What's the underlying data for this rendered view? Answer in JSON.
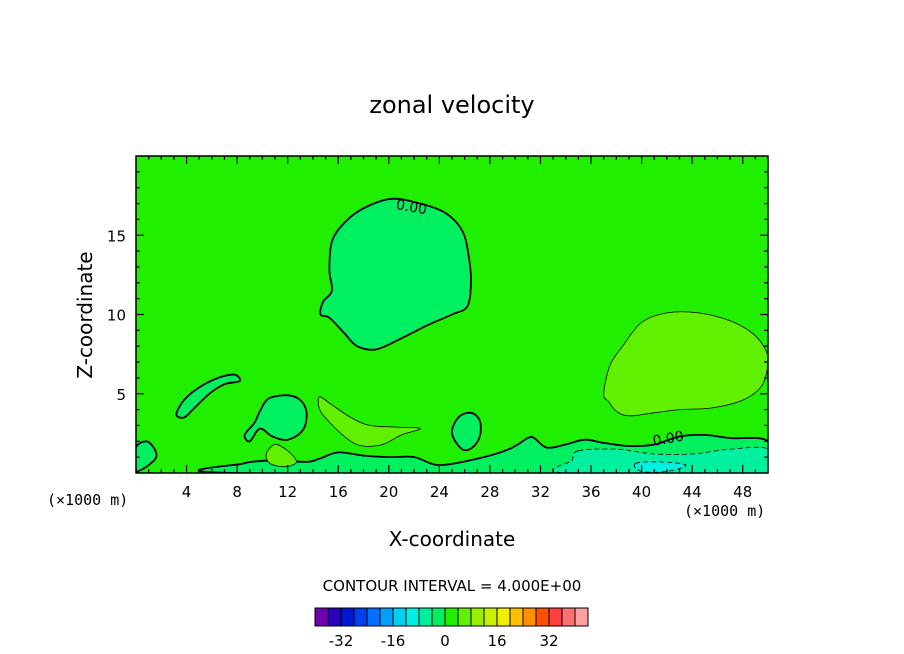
{
  "chart_data": {
    "type": "heatmap",
    "title": "zonal velocity",
    "xlabel": "X-coordinate",
    "ylabel": "Z-coordinate",
    "x_unit_left": "(×1000 m)",
    "x_unit_right": "(×1000 m)",
    "xlim": [
      0,
      50
    ],
    "ylim": [
      0,
      20
    ],
    "x_ticks": [
      4,
      8,
      12,
      16,
      20,
      24,
      28,
      32,
      36,
      40,
      44,
      48
    ],
    "y_ticks": [
      5,
      10,
      15
    ],
    "background_value": 2,
    "regions": [
      {
        "name": "upper-blob",
        "value": -2,
        "points": [
          [
            20.2,
            17.3
          ],
          [
            22.5,
            17.0
          ],
          [
            24.5,
            16.4
          ],
          [
            25.8,
            15.3
          ],
          [
            26.3,
            13.8
          ],
          [
            26.5,
            12.0
          ],
          [
            26.2,
            10.5
          ],
          [
            25.0,
            10.0
          ],
          [
            23.0,
            9.3
          ],
          [
            21.0,
            8.5
          ],
          [
            19.0,
            7.8
          ],
          [
            17.5,
            8.0
          ],
          [
            16.5,
            8.8
          ],
          [
            15.3,
            9.8
          ],
          [
            14.6,
            10.0
          ],
          [
            14.8,
            10.8
          ],
          [
            15.5,
            11.5
          ],
          [
            15.3,
            12.8
          ],
          [
            15.5,
            14.6
          ],
          [
            16.5,
            15.8
          ],
          [
            18.0,
            16.7
          ]
        ],
        "label": "0.00",
        "label_at": [
          21.8,
          16.8
        ],
        "label_angle": 10
      },
      {
        "name": "low-left-blob",
        "value": -2,
        "points": [
          [
            3.2,
            3.7
          ],
          [
            3.8,
            4.6
          ],
          [
            5.0,
            5.4
          ],
          [
            6.5,
            6.0
          ],
          [
            7.8,
            6.2
          ],
          [
            8.2,
            5.8
          ],
          [
            7.0,
            5.6
          ],
          [
            5.8,
            5.0
          ],
          [
            4.5,
            4.0
          ],
          [
            3.8,
            3.5
          ]
        ]
      },
      {
        "name": "blob-12",
        "value": -2,
        "points": [
          [
            9.8,
            3.9
          ],
          [
            10.5,
            4.7
          ],
          [
            12.0,
            4.9
          ],
          [
            13.0,
            4.6
          ],
          [
            13.5,
            3.8
          ],
          [
            13.2,
            2.7
          ],
          [
            12.0,
            2.1
          ],
          [
            10.8,
            2.3
          ],
          [
            9.8,
            2.8
          ],
          [
            9.0,
            2.0
          ],
          [
            8.6,
            2.4
          ],
          [
            9.4,
            3.2
          ]
        ]
      },
      {
        "name": "blob-26",
        "value": -2,
        "points": [
          [
            25.0,
            2.5
          ],
          [
            25.5,
            3.5
          ],
          [
            26.5,
            3.8
          ],
          [
            27.2,
            3.3
          ],
          [
            27.2,
            2.3
          ],
          [
            26.6,
            1.6
          ],
          [
            25.8,
            1.5
          ]
        ]
      },
      {
        "name": "blob-left-edge",
        "value": -2,
        "points": [
          [
            0.0,
            1.6
          ],
          [
            0.8,
            2.0
          ],
          [
            1.4,
            1.6
          ],
          [
            1.6,
            1.0
          ],
          [
            1.0,
            0.5
          ],
          [
            0.4,
            0.2
          ],
          [
            0.0,
            0.2
          ]
        ]
      },
      {
        "name": "low-band",
        "value": -2,
        "points": [
          [
            8.0,
            0.0
          ],
          [
            8.5,
            0.6
          ],
          [
            11.0,
            0.8
          ],
          [
            13.5,
            0.7
          ],
          [
            14.5,
            0.9
          ],
          [
            16.0,
            1.3
          ],
          [
            18.0,
            1.1
          ],
          [
            20.0,
            1.0
          ],
          [
            22.0,
            1.0
          ],
          [
            24.0,
            0.5
          ],
          [
            27.0,
            0.9
          ],
          [
            29.5,
            1.5
          ],
          [
            31.0,
            2.2
          ],
          [
            31.5,
            2.2
          ],
          [
            32.5,
            1.6
          ],
          [
            34.0,
            1.8
          ],
          [
            35.5,
            2.1
          ],
          [
            37.0,
            1.9
          ],
          [
            39.0,
            1.7
          ],
          [
            41.0,
            1.8
          ],
          [
            43.0,
            2.3
          ],
          [
            45.0,
            2.4
          ],
          [
            47.0,
            2.2
          ],
          [
            50.0,
            2.0
          ],
          [
            50.0,
            0.0
          ]
        ],
        "label": "0.00",
        "label_at": [
          42.1,
          2.2
        ],
        "label_angle": -10
      },
      {
        "name": "pos-blob-right",
        "value": 6,
        "points": [
          [
            37.0,
            5.0
          ],
          [
            37.5,
            6.8
          ],
          [
            38.5,
            8.0
          ],
          [
            40.0,
            9.5
          ],
          [
            42.0,
            10.1
          ],
          [
            44.5,
            10.1
          ],
          [
            47.0,
            9.6
          ],
          [
            48.8,
            8.8
          ],
          [
            49.8,
            7.8
          ],
          [
            50.0,
            6.9
          ],
          [
            49.5,
            5.5
          ],
          [
            48.0,
            4.6
          ],
          [
            45.5,
            4.1
          ],
          [
            43.0,
            4.0
          ],
          [
            41.0,
            3.8
          ],
          [
            39.0,
            3.6
          ],
          [
            38.0,
            3.9
          ],
          [
            37.4,
            4.5
          ]
        ]
      },
      {
        "name": "pos-blob-center",
        "value": 6,
        "points": [
          [
            14.5,
            4.8
          ],
          [
            15.5,
            4.3
          ],
          [
            17.0,
            3.5
          ],
          [
            18.5,
            3.0
          ],
          [
            20.5,
            2.9
          ],
          [
            22.5,
            2.8
          ],
          [
            21.0,
            2.4
          ],
          [
            19.5,
            1.8
          ],
          [
            18.0,
            1.7
          ],
          [
            17.0,
            2.0
          ],
          [
            15.8,
            2.8
          ],
          [
            14.6,
            3.9
          ]
        ]
      },
      {
        "name": "pos-blob-low-12",
        "value": 6,
        "points": [
          [
            10.3,
            1.2
          ],
          [
            11.0,
            1.8
          ],
          [
            12.0,
            1.4
          ],
          [
            12.7,
            0.7
          ],
          [
            11.8,
            0.4
          ],
          [
            10.6,
            0.6
          ]
        ]
      },
      {
        "name": "neg-low-right",
        "value": -6,
        "points": [
          [
            35.0,
            1.4
          ],
          [
            38.0,
            1.5
          ],
          [
            41.0,
            1.2
          ],
          [
            44.0,
            1.2
          ],
          [
            47.0,
            1.5
          ],
          [
            50.0,
            1.5
          ],
          [
            50.0,
            0.0
          ],
          [
            34.0,
            0.0
          ],
          [
            34.5,
            0.8
          ]
        ]
      },
      {
        "name": "neg-core-right",
        "value": -10,
        "points": [
          [
            39.5,
            0.6
          ],
          [
            41.5,
            0.7
          ],
          [
            43.5,
            0.5
          ],
          [
            42.0,
            0.1
          ],
          [
            40.0,
            0.1
          ]
        ]
      }
    ],
    "colorbar": {
      "title": "CONTOUR INTERVAL = 4.000E+00",
      "interval": 4,
      "bins": [
        {
          "range": [
            -40,
            -36
          ],
          "color": "#7000b0"
        },
        {
          "range": [
            -36,
            -32
          ],
          "color": "#2a00c0"
        },
        {
          "range": [
            -32,
            -28
          ],
          "color": "#0018d0"
        },
        {
          "range": [
            -28,
            -24
          ],
          "color": "#0040f0"
        },
        {
          "range": [
            -24,
            -20
          ],
          "color": "#0070ff"
        },
        {
          "range": [
            -20,
            -16
          ],
          "color": "#00a0ff"
        },
        {
          "range": [
            -16,
            -12
          ],
          "color": "#00d0f0"
        },
        {
          "range": [
            -12,
            -8
          ],
          "color": "#00f0e0"
        },
        {
          "range": [
            -8,
            -4
          ],
          "color": "#00f0a0"
        },
        {
          "range": [
            -4,
            0
          ],
          "color": "#00f060"
        },
        {
          "range": [
            0,
            4
          ],
          "color": "#20f000"
        },
        {
          "range": [
            4,
            8
          ],
          "color": "#60f000"
        },
        {
          "range": [
            8,
            12
          ],
          "color": "#98f000"
        },
        {
          "range": [
            12,
            16
          ],
          "color": "#c8f000"
        },
        {
          "range": [
            16,
            20
          ],
          "color": "#f0f000"
        },
        {
          "range": [
            20,
            24
          ],
          "color": "#ffc000"
        },
        {
          "range": [
            24,
            28
          ],
          "color": "#ff9000"
        },
        {
          "range": [
            28,
            32
          ],
          "color": "#ff5000"
        },
        {
          "range": [
            32,
            36
          ],
          "color": "#ff4040"
        },
        {
          "range": [
            36,
            40
          ],
          "color": "#ff7070"
        },
        {
          "range": [
            40,
            44
          ],
          "color": "#ffa0a0"
        }
      ],
      "tick_labels": [
        "-32",
        "-16",
        "0",
        "16",
        "32"
      ],
      "tick_values": [
        -32,
        -16,
        0,
        16,
        32
      ]
    }
  }
}
